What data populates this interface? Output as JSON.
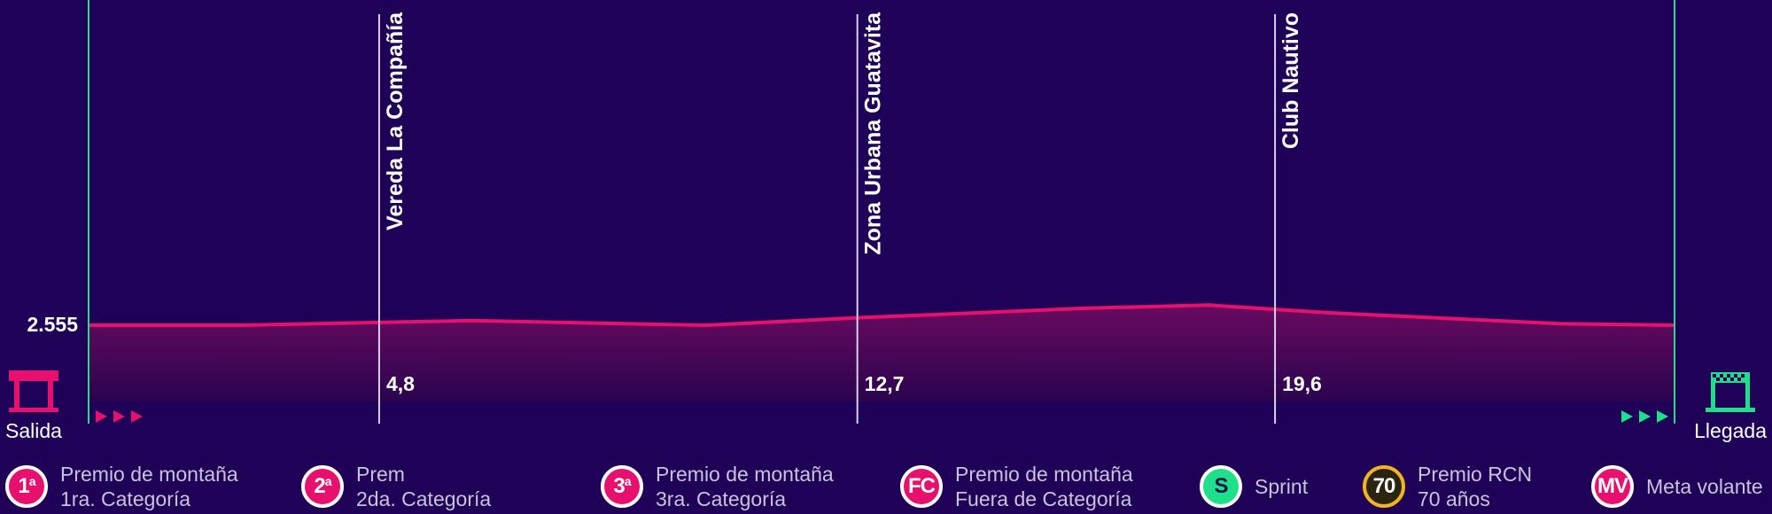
{
  "chart_data": {
    "type": "area",
    "x": [
      0,
      4.8,
      12.7,
      19.6,
      26.2
    ],
    "elevation_label": "2.555",
    "profile_color": "#e8106e",
    "fill_color_top": "#6a0a5f",
    "fill_color_bottom": "#2a044f",
    "line_color_start_finish": "#1fe08a",
    "waypoints": [
      {
        "km": 4.8,
        "km_label": "4,8",
        "name": "Vereda La Compañía"
      },
      {
        "km": 12.7,
        "km_label": "12,7",
        "name": "Zona Urbana Guatavita"
      },
      {
        "km": 19.6,
        "km_label": "19,6",
        "name": "Club Nautivo"
      }
    ],
    "profile": [
      {
        "km": 0,
        "alt": 2555
      },
      {
        "km": 2.5,
        "alt": 2555
      },
      {
        "km": 6.3,
        "alt": 2558
      },
      {
        "km": 10.2,
        "alt": 2555
      },
      {
        "km": 12.8,
        "alt": 2560
      },
      {
        "km": 16.5,
        "alt": 2566
      },
      {
        "km": 18.5,
        "alt": 2568
      },
      {
        "km": 20.5,
        "alt": 2563
      },
      {
        "km": 24.3,
        "alt": 2556
      },
      {
        "km": 26.2,
        "alt": 2555
      }
    ],
    "ylim": [
      2500,
      2600
    ]
  },
  "start": {
    "label": "Salida",
    "icon": "start-gate-icon"
  },
  "finish": {
    "label": "Llegada",
    "icon": "finish-gate-icon"
  },
  "legend": [
    {
      "symbol": "1",
      "sup": "a",
      "line1": "Premio de montaña",
      "line2": "1ra. Categoría",
      "color": "#e8106e",
      "border": "#ffffff"
    },
    {
      "symbol": "2",
      "sup": "a",
      "line1": "Prem",
      "line2": "2da. Categoría",
      "color": "#e8106e",
      "border": "#ffffff"
    },
    {
      "symbol": "3",
      "sup": "a",
      "line1": "Premio de montaña",
      "line2": "3ra. Categoría",
      "color": "#e8106e",
      "border": "#ffffff"
    },
    {
      "symbol": "FC",
      "sup": "",
      "line1": "Premio de montaña",
      "line2": "Fuera de Categoría",
      "color": "#e8106e",
      "border": "#ffffff"
    },
    {
      "symbol": "S",
      "sup": "",
      "line1": "Sprint",
      "line2": "",
      "color": "#1fe08a",
      "border": "#ffffff",
      "text_color": "#14104a"
    },
    {
      "symbol": "70",
      "sup": "",
      "line1": "Premio RCN",
      "line2": "70 años",
      "color": "#2a2410",
      "border": "#f2b51d"
    },
    {
      "symbol": "MV",
      "sup": "",
      "line1": "Meta volante",
      "line2": "",
      "color": "#e8106e",
      "border": "#ffffff"
    }
  ]
}
